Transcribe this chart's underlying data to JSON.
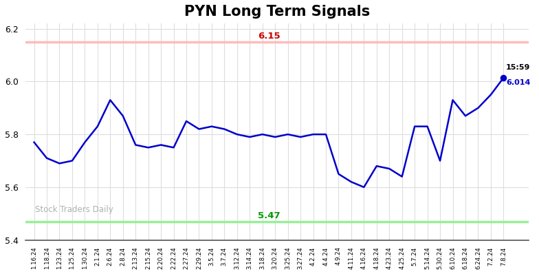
{
  "title": "PYN Long Term Signals",
  "x_labels": [
    "1.16.24",
    "1.18.24",
    "1.23.24",
    "1.25.24",
    "1.30.24",
    "2.1.24",
    "2.6.24",
    "2.8.24",
    "2.13.24",
    "2.15.24",
    "2.20.24",
    "2.22.24",
    "2.27.24",
    "2.29.24",
    "3.5.24",
    "3.7.24",
    "3.12.24",
    "3.14.24",
    "3.18.24",
    "3.20.24",
    "3.25.24",
    "3.27.24",
    "4.2.24",
    "4.4.24",
    "4.9.24",
    "4.11.24",
    "4.16.24",
    "4.18.24",
    "4.23.24",
    "4.25.24",
    "5.7.24",
    "5.14.24",
    "5.30.24",
    "6.10.24",
    "6.18.24",
    "6.24.24",
    "7.2.24",
    "7.8.24"
  ],
  "y_values": [
    5.77,
    5.71,
    5.69,
    5.7,
    5.77,
    5.83,
    5.93,
    5.87,
    5.76,
    5.75,
    5.76,
    5.75,
    5.85,
    5.82,
    5.83,
    5.82,
    5.8,
    5.79,
    5.8,
    5.79,
    5.8,
    5.79,
    5.8,
    5.8,
    5.65,
    5.62,
    5.6,
    5.68,
    5.67,
    5.64,
    5.83,
    5.83,
    5.7,
    5.93,
    5.87,
    5.9,
    5.95,
    6.014
  ],
  "line_color": "#0000cc",
  "line_width": 1.8,
  "upper_line_value": 6.15,
  "upper_line_color": "#ffbbbb",
  "upper_line_label": "6.15",
  "upper_label_color": "#cc0000",
  "lower_line_value": 5.47,
  "lower_line_color": "#99ee99",
  "lower_line_label": "5.47",
  "lower_label_color": "#009900",
  "watermark": "Stock Traders Daily",
  "watermark_color": "#b0b0b0",
  "last_time": "15:59",
  "last_value": "6.014",
  "last_dot_color": "#0000cc",
  "ylim": [
    5.4,
    6.22
  ],
  "yticks": [
    5.4,
    5.6,
    5.8,
    6.0,
    6.2
  ],
  "background_color": "#ffffff",
  "grid_color": "#dddddd",
  "title_fontsize": 15
}
